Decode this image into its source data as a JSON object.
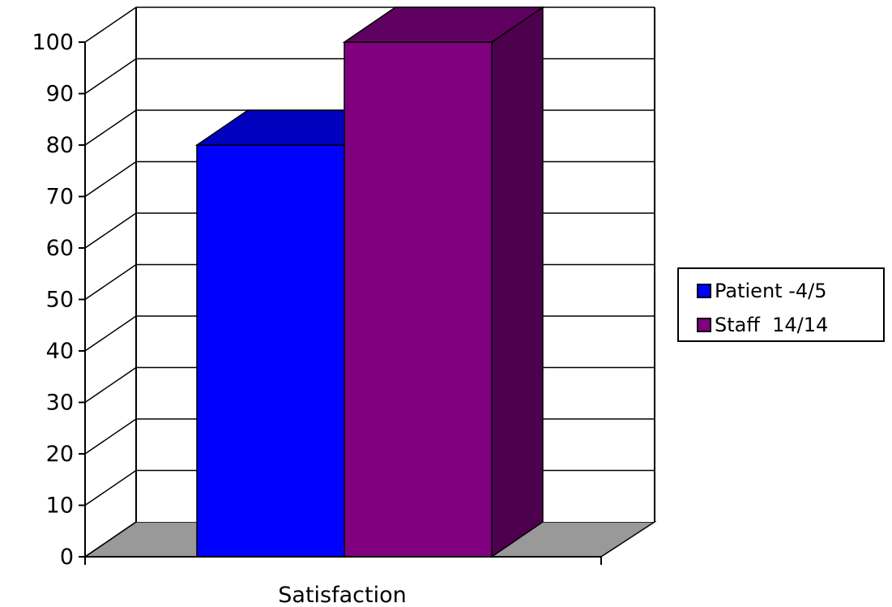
{
  "chart_data": {
    "type": "bar",
    "categories": [
      "Satisfaction"
    ],
    "series": [
      {
        "name": "Patient -4/5",
        "values": [
          80
        ],
        "color": "#0000ff"
      },
      {
        "name": "Staff  14/14",
        "values": [
          100
        ],
        "color": "#800080"
      }
    ],
    "xlabel": "",
    "ylabel": "",
    "ylim": [
      0,
      100
    ],
    "yticks": [
      "0",
      "10",
      "20",
      "30",
      "40",
      "50",
      "60",
      "70",
      "80",
      "90",
      "100"
    ],
    "grid": true,
    "three_d": true,
    "floor_color": "#999999",
    "legend_position": "right"
  }
}
